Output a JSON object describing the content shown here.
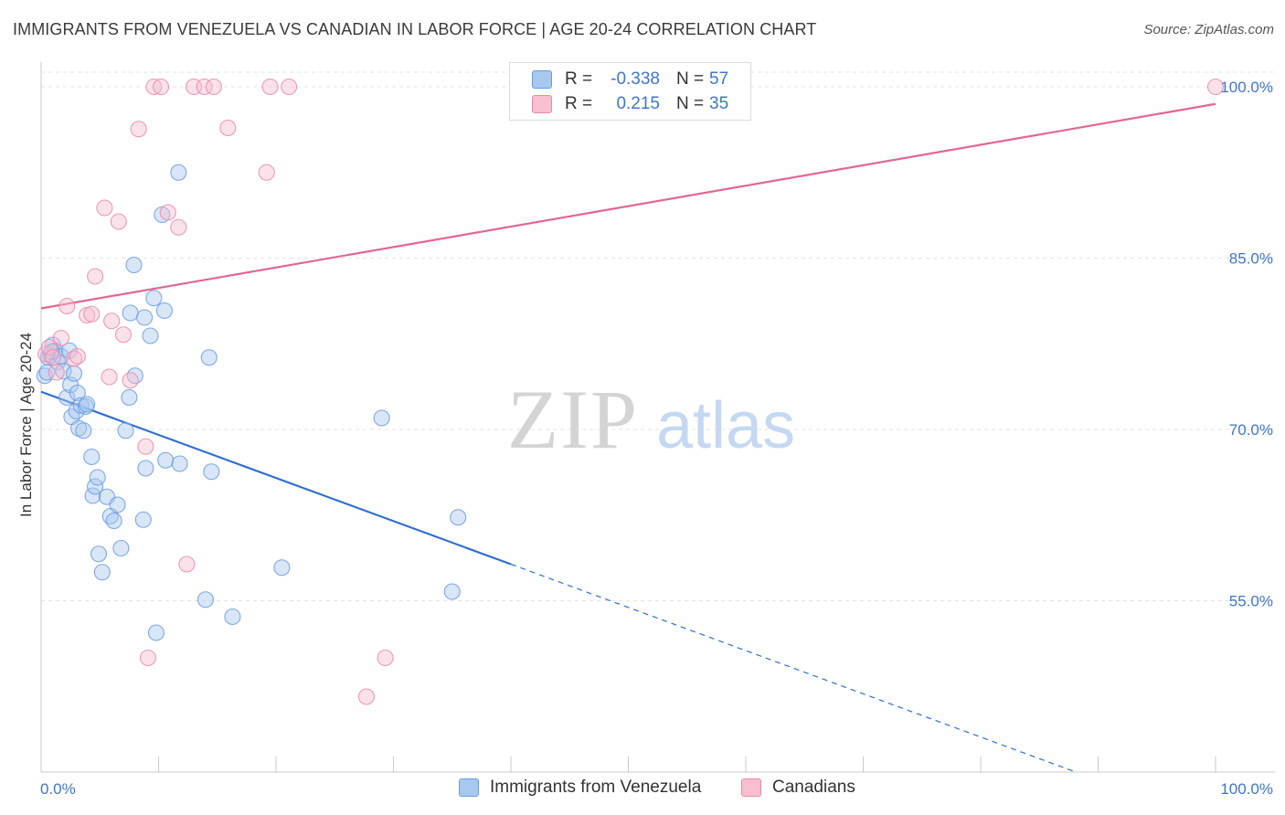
{
  "title": "IMMIGRANTS FROM VENEZUELA VS CANADIAN IN LABOR FORCE | AGE 20-24 CORRELATION CHART",
  "source": "Source: ZipAtlas.com",
  "watermark": {
    "zip": "ZIP",
    "atlas": "atlas"
  },
  "legend": {
    "rows": [
      {
        "r_label": "R =",
        "r_value": "-0.338",
        "n_label": "N =",
        "n_value": "57",
        "color": "#a9c8f0",
        "border": "#6a9be0"
      },
      {
        "r_label": "R =",
        "r_value": "0.215",
        "n_label": "N =",
        "n_value": "35",
        "color": "#f7bfd0",
        "border": "#e98aa8"
      }
    ]
  },
  "bottom_legend": [
    {
      "label": "Immigrants from Venezuela",
      "color": "#a9c8f0",
      "border": "#6a9be0"
    },
    {
      "label": "Canadians",
      "color": "#f7bfd0",
      "border": "#e98aa8"
    }
  ],
  "chart_data": {
    "type": "scatter",
    "xlabel": "",
    "ylabel": "In Labor Force | Age 20-24",
    "xlim": [
      0,
      100
    ],
    "ylim": [
      40,
      102
    ],
    "x_tick_labels": [
      "0.0%",
      "100.0%"
    ],
    "y_ticks": [
      55,
      70,
      85,
      100
    ],
    "y_tick_labels": [
      "55.0%",
      "70.0%",
      "85.0%",
      "100.0%"
    ],
    "grid": true,
    "series": [
      {
        "name": "Immigrants from Venezuela",
        "color": "#6a9be0",
        "fill": "#a9c8f0",
        "trend": {
          "x0": 0,
          "y0": 73.3,
          "x1": 40,
          "y1": 58.2,
          "dash_to_x": 100,
          "dash_to_y": 35.5,
          "color": "#2f6fd0"
        },
        "points": [
          [
            0.3,
            74.7
          ],
          [
            0.5,
            75.0
          ],
          [
            0.6,
            76.3
          ],
          [
            0.8,
            76.5
          ],
          [
            1.0,
            77.4
          ],
          [
            1.2,
            76.9
          ],
          [
            1.4,
            75.9
          ],
          [
            1.7,
            76.4
          ],
          [
            1.9,
            75.1
          ],
          [
            2.2,
            72.8
          ],
          [
            2.4,
            76.9
          ],
          [
            2.5,
            73.9
          ],
          [
            2.6,
            71.1
          ],
          [
            2.8,
            74.9
          ],
          [
            3.0,
            71.6
          ],
          [
            3.1,
            73.2
          ],
          [
            3.2,
            70.1
          ],
          [
            3.4,
            72.1
          ],
          [
            3.6,
            69.9
          ],
          [
            3.8,
            72.0
          ],
          [
            3.9,
            72.2
          ],
          [
            4.3,
            67.6
          ],
          [
            4.4,
            64.2
          ],
          [
            4.6,
            65.0
          ],
          [
            4.8,
            65.8
          ],
          [
            4.9,
            59.1
          ],
          [
            5.2,
            57.5
          ],
          [
            5.6,
            64.1
          ],
          [
            5.9,
            62.4
          ],
          [
            6.2,
            62.0
          ],
          [
            6.5,
            63.4
          ],
          [
            6.8,
            59.6
          ],
          [
            7.2,
            69.9
          ],
          [
            7.5,
            72.8
          ],
          [
            7.6,
            80.2
          ],
          [
            7.9,
            84.4
          ],
          [
            8.0,
            74.7
          ],
          [
            8.7,
            62.1
          ],
          [
            8.8,
            79.8
          ],
          [
            8.9,
            66.6
          ],
          [
            9.3,
            78.2
          ],
          [
            9.6,
            81.5
          ],
          [
            9.8,
            52.2
          ],
          [
            10.3,
            88.8
          ],
          [
            10.5,
            80.4
          ],
          [
            10.6,
            67.3
          ],
          [
            11.7,
            92.5
          ],
          [
            11.8,
            67.0
          ],
          [
            14.0,
            55.1
          ],
          [
            14.3,
            76.3
          ],
          [
            14.5,
            66.3
          ],
          [
            16.3,
            53.6
          ],
          [
            20.5,
            57.9
          ],
          [
            29.0,
            71.0
          ],
          [
            35.0,
            55.8
          ],
          [
            35.5,
            62.3
          ],
          [
            0.9,
            76.8
          ]
        ]
      },
      {
        "name": "Canadians",
        "color": "#e98aa8",
        "fill": "#f7bfd0",
        "trend": {
          "x0": 0,
          "y0": 80.6,
          "x1": 100,
          "y1": 98.5,
          "color": "#e2678f"
        },
        "points": [
          [
            0.4,
            76.6
          ],
          [
            0.7,
            77.2
          ],
          [
            1.0,
            76.3
          ],
          [
            1.3,
            75.0
          ],
          [
            1.7,
            78.0
          ],
          [
            2.2,
            80.8
          ],
          [
            2.8,
            76.2
          ],
          [
            3.1,
            76.4
          ],
          [
            3.9,
            80.0
          ],
          [
            4.3,
            80.1
          ],
          [
            4.6,
            83.4
          ],
          [
            5.4,
            89.4
          ],
          [
            5.8,
            74.6
          ],
          [
            6.0,
            79.5
          ],
          [
            6.6,
            88.2
          ],
          [
            7.0,
            78.3
          ],
          [
            7.6,
            74.3
          ],
          [
            8.3,
            96.3
          ],
          [
            8.9,
            68.5
          ],
          [
            9.1,
            50.0
          ],
          [
            9.6,
            100.0
          ],
          [
            10.2,
            100.0
          ],
          [
            10.8,
            89.0
          ],
          [
            11.7,
            87.7
          ],
          [
            12.4,
            58.2
          ],
          [
            13.0,
            100.0
          ],
          [
            13.9,
            100.0
          ],
          [
            14.7,
            100.0
          ],
          [
            15.9,
            96.4
          ],
          [
            19.2,
            92.5
          ],
          [
            19.5,
            100.0
          ],
          [
            21.1,
            100.0
          ],
          [
            27.7,
            46.6
          ],
          [
            29.3,
            50.0
          ],
          [
            100.0,
            100.0
          ]
        ]
      }
    ]
  }
}
